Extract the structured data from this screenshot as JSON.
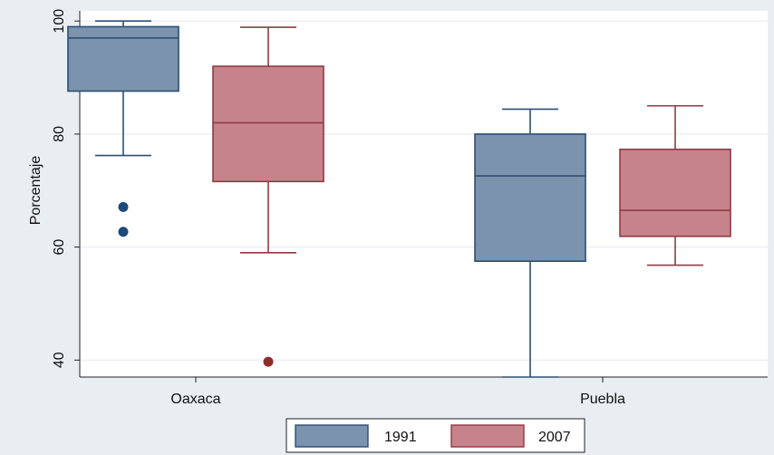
{
  "chart_data": {
    "type": "boxplot",
    "title": "",
    "xlabel": "",
    "ylabel": "Porcentaje",
    "ylim": [
      37,
      101.8
    ],
    "yticks": [
      40,
      60,
      80,
      100
    ],
    "grid": true,
    "legend_placement": "bottom-center",
    "categories": [
      "Oaxaca",
      "Puebla"
    ],
    "series": [
      {
        "name": "1991",
        "color": "#7b93ad",
        "stroke": "#2d4f73",
        "outlier_color": "#1f4a78",
        "boxes": [
          {
            "category": "Oaxaca",
            "whisker_low": 76.2,
            "q1": 87.6,
            "median": 97.0,
            "q3": 99.0,
            "whisker_high": 100.0,
            "outliers": [
              67.1,
              62.7
            ]
          },
          {
            "category": "Puebla",
            "whisker_low": 37.0,
            "q1": 57.5,
            "median": 72.6,
            "q3": 80.0,
            "whisker_high": 84.4,
            "outliers": []
          }
        ]
      },
      {
        "name": "2007",
        "color": "#c6838b",
        "stroke": "#8f3a44",
        "outlier_color": "#8f2b2b",
        "boxes": [
          {
            "category": "Oaxaca",
            "whisker_low": 59.0,
            "q1": 71.6,
            "median": 82.0,
            "q3": 92.0,
            "whisker_high": 98.9,
            "outliers": [
              39.7
            ]
          },
          {
            "category": "Puebla",
            "whisker_low": 56.8,
            "q1": 61.9,
            "median": 66.5,
            "q3": 77.3,
            "whisker_high": 85.0,
            "outliers": []
          }
        ]
      }
    ]
  }
}
